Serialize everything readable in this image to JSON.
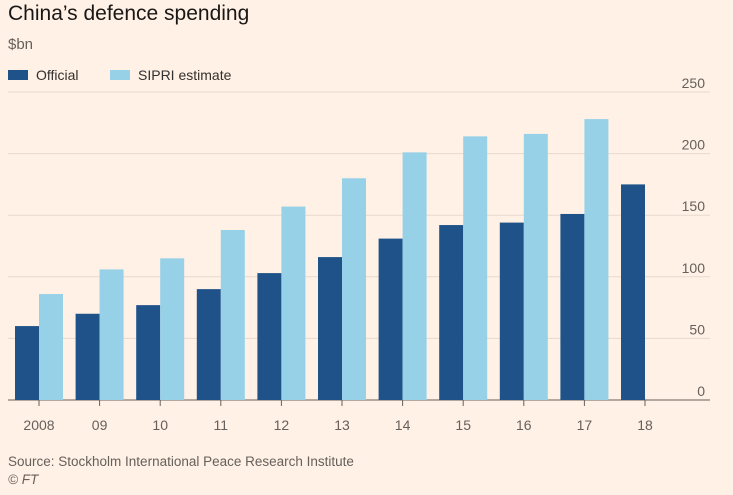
{
  "chart_data": {
    "type": "bar",
    "title": "China’s defence spending",
    "subtitle": "$bn",
    "categories": [
      "2008",
      "09",
      "10",
      "11",
      "12",
      "13",
      "14",
      "15",
      "16",
      "17",
      "18"
    ],
    "series": [
      {
        "name": "Official",
        "color": "#1f5289",
        "values": [
          60,
          70,
          77,
          90,
          103,
          116,
          131,
          142,
          144,
          151,
          175
        ]
      },
      {
        "name": "SIPRI estimate",
        "color": "#96d1e8",
        "values": [
          86,
          106,
          115,
          138,
          157,
          180,
          201,
          214,
          216,
          228,
          null
        ]
      }
    ],
    "ylim": [
      0,
      250
    ],
    "yticks": [
      0,
      50,
      100,
      150,
      200,
      250
    ],
    "y_axis_position": "right",
    "grid": true,
    "legend_placement": "top-left"
  },
  "footer": {
    "source": "Source: Stockholm International Peace Research Institute",
    "credit": "© FT"
  }
}
